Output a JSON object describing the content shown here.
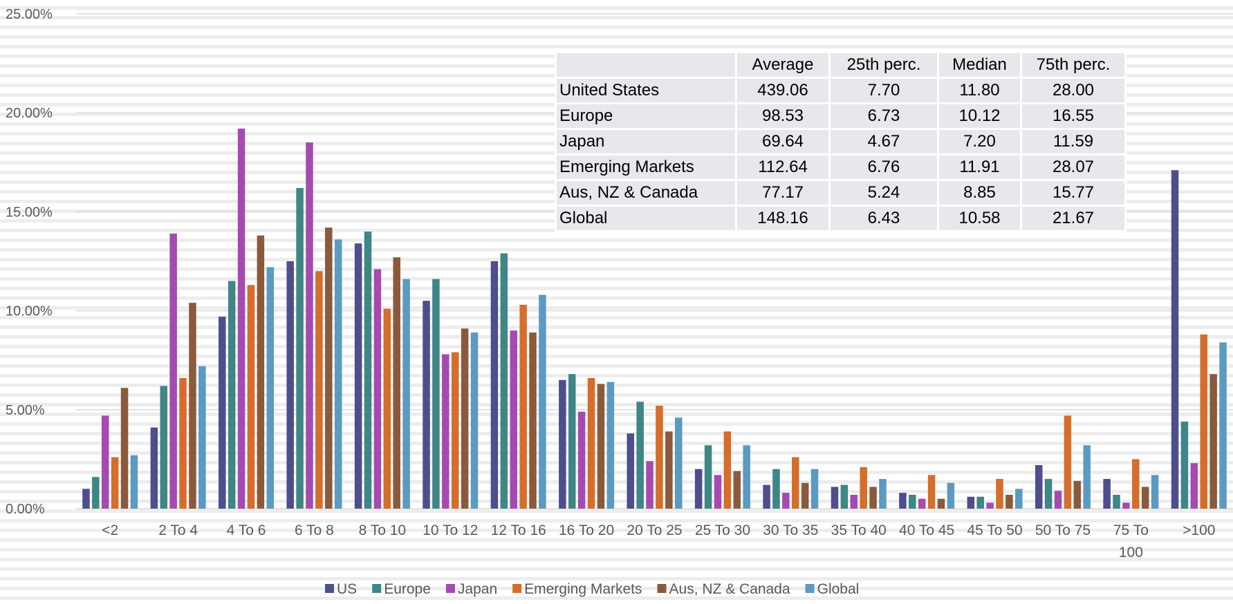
{
  "chart_data": {
    "type": "bar",
    "categories": [
      "<2",
      "2 To 4",
      "4 To 6",
      "6 To 8",
      "8 To 10",
      "10 To 12",
      "12 To 16",
      "16 To 20",
      "20 To 25",
      "25 To 30",
      "30 To 35",
      "35 To 40",
      "40 To 45",
      "45 To 50",
      "50 To 75",
      "75 To\n100",
      ">100"
    ],
    "series": [
      {
        "name": "US",
        "color": "#4e4e8c",
        "values": [
          1.0,
          4.1,
          9.7,
          12.5,
          13.4,
          10.5,
          12.5,
          6.5,
          3.8,
          2.0,
          1.2,
          1.1,
          0.8,
          0.6,
          2.2,
          1.5,
          17.1
        ]
      },
      {
        "name": "Europe",
        "color": "#3f8686",
        "values": [
          1.6,
          6.2,
          11.5,
          16.2,
          14.0,
          11.6,
          12.9,
          6.8,
          5.4,
          3.2,
          2.0,
          1.2,
          0.7,
          0.6,
          1.5,
          0.7,
          4.4
        ]
      },
      {
        "name": "Japan",
        "color": "#a64ab1",
        "values": [
          4.7,
          13.9,
          19.2,
          18.5,
          12.1,
          7.8,
          9.0,
          4.9,
          2.4,
          1.7,
          0.8,
          0.7,
          0.5,
          0.3,
          0.9,
          0.3,
          2.3
        ]
      },
      {
        "name": "Emerging Markets",
        "color": "#d66d2a",
        "values": [
          2.6,
          6.6,
          11.3,
          12.0,
          10.1,
          7.9,
          10.3,
          6.6,
          5.2,
          3.9,
          2.6,
          2.1,
          1.7,
          1.5,
          4.7,
          2.5,
          8.8
        ]
      },
      {
        "name": "Aus, NZ & Canada",
        "color": "#8a5a3c",
        "values": [
          6.1,
          10.4,
          13.8,
          14.2,
          12.7,
          9.1,
          8.9,
          6.3,
          3.9,
          1.9,
          1.3,
          1.1,
          0.5,
          0.7,
          1.4,
          1.1,
          6.8
        ]
      },
      {
        "name": "Global",
        "color": "#5b9ac1",
        "values": [
          2.7,
          7.2,
          12.2,
          13.6,
          11.6,
          8.9,
          10.8,
          6.4,
          4.6,
          3.2,
          2.0,
          1.5,
          1.3,
          1.0,
          3.2,
          1.7,
          8.4
        ]
      }
    ],
    "y_ticks": [
      "0.00%",
      "5.00%",
      "10.00%",
      "15.00%",
      "20.00%",
      "25.00%"
    ],
    "ylim": [
      0,
      25
    ],
    "grid": true,
    "legend_position": "bottom",
    "title": "",
    "xlabel": "",
    "ylabel": ""
  },
  "table": {
    "headers": [
      "",
      "Average",
      "25th perc.",
      "Median",
      "75th perc."
    ],
    "rows": [
      {
        "label": "United States",
        "values": [
          "439.06",
          "7.70",
          "11.80",
          "28.00"
        ]
      },
      {
        "label": "Europe",
        "values": [
          "98.53",
          "6.73",
          "10.12",
          "16.55"
        ]
      },
      {
        "label": "Japan",
        "values": [
          "69.64",
          "4.67",
          "7.20",
          "11.59"
        ]
      },
      {
        "label": "Emerging Markets",
        "values": [
          "112.64",
          "6.76",
          "11.91",
          "28.07"
        ]
      },
      {
        "label": "Aus, NZ & Canada",
        "values": [
          "77.17",
          "5.24",
          "8.85",
          "15.77"
        ]
      },
      {
        "label": "Global",
        "values": [
          "148.16",
          "6.43",
          "10.58",
          "21.67"
        ]
      }
    ]
  }
}
